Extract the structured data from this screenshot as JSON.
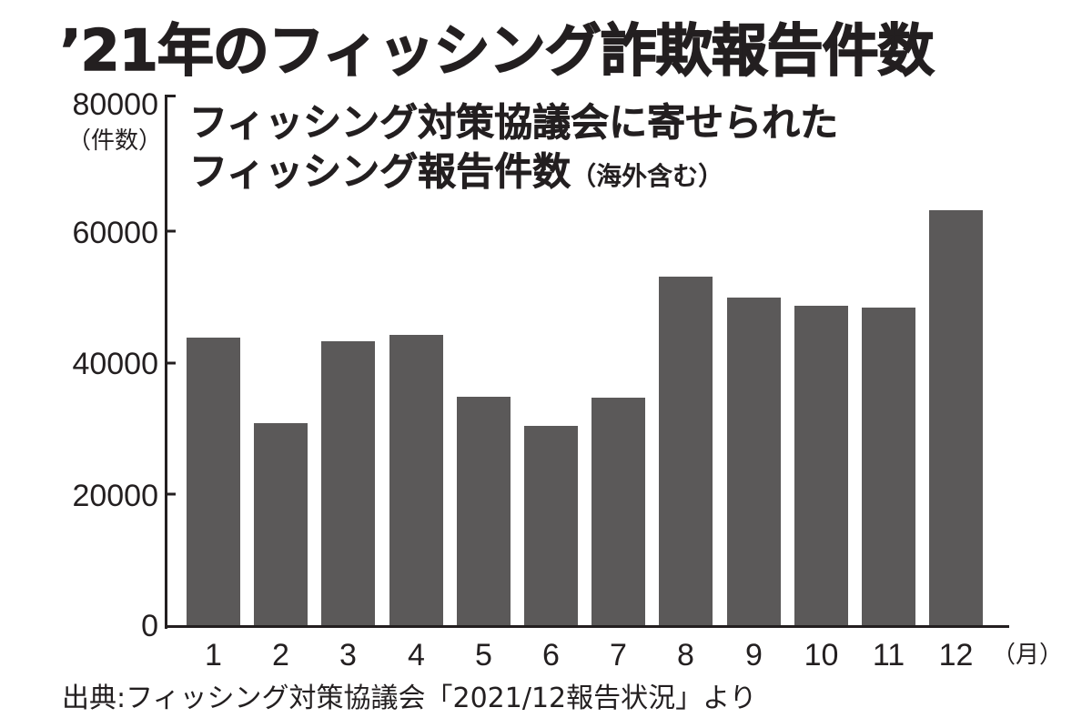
{
  "header": {
    "title": "’21年のフィッシング詐欺報告件数"
  },
  "subtitle": {
    "line1": "フィッシング対策協議会に寄せられた",
    "line2": "フィッシング報告件数",
    "note": "（海外含む）"
  },
  "y_axis": {
    "unit_label": "（件数）",
    "ticks": [
      "0",
      "20000",
      "40000",
      "60000",
      "80000"
    ]
  },
  "x_axis": {
    "unit_label": "（月）",
    "ticks": [
      "1",
      "2",
      "3",
      "4",
      "5",
      "6",
      "7",
      "8",
      "9",
      "10",
      "11",
      "12"
    ]
  },
  "footer": {
    "source": "出典:フィッシング対策協議会「2021/12報告状況」より"
  },
  "colors": {
    "bar": "#5b5959",
    "text": "#231f20",
    "background": "#ffffff"
  },
  "chart_data": {
    "type": "bar",
    "title": "’21年のフィッシング詐欺報告件数",
    "subtitle": "フィッシング対策協議会に寄せられたフィッシング報告件数（海外含む）",
    "categories": [
      "1",
      "2",
      "3",
      "4",
      "5",
      "6",
      "7",
      "8",
      "9",
      "10",
      "11",
      "12"
    ],
    "values": [
      43900,
      30800,
      43300,
      44300,
      34900,
      30400,
      34700,
      53100,
      49900,
      48700,
      48400,
      63200
    ],
    "xlabel": "（月）",
    "ylabel": "（件数）",
    "ylim": [
      0,
      80000
    ],
    "yticks": [
      0,
      20000,
      40000,
      60000,
      80000
    ],
    "grid": false,
    "legend": null,
    "source": "出典:フィッシング対策協議会「2021/12報告状況」より"
  }
}
